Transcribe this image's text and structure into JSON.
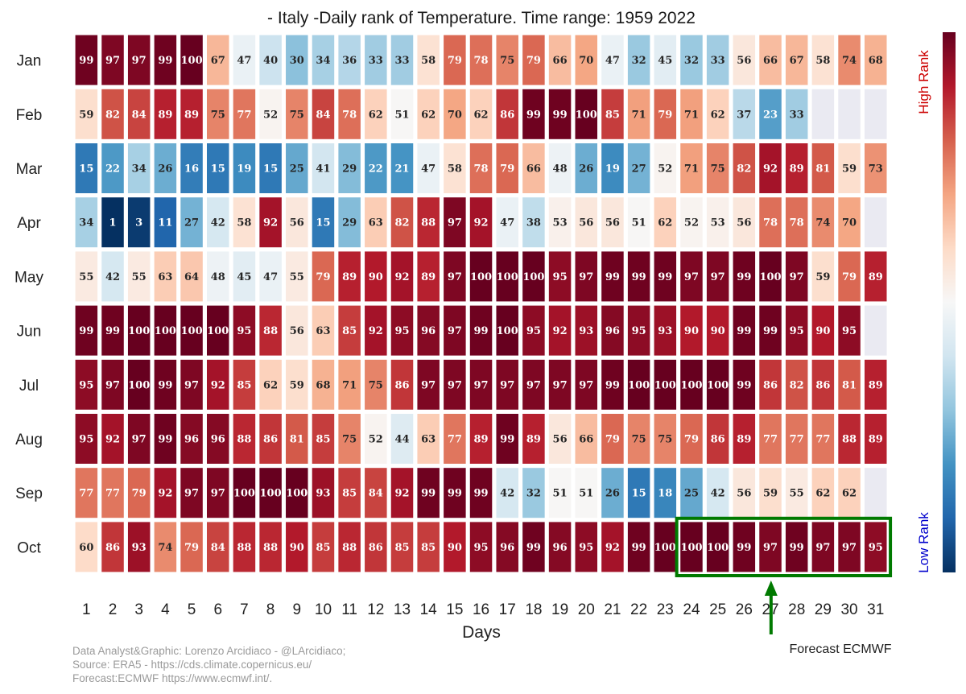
{
  "chart_data": {
    "type": "heatmap",
    "title": "- Italy -Daily rank of Temperature. Time range: 1959 2022",
    "xlabel": "Days",
    "ylabel": "",
    "x": [
      1,
      2,
      3,
      4,
      5,
      6,
      7,
      8,
      9,
      10,
      11,
      12,
      13,
      14,
      15,
      16,
      17,
      18,
      19,
      20,
      21,
      22,
      23,
      24,
      25,
      26,
      27,
      28,
      29,
      30,
      31
    ],
    "y": [
      "Jan",
      "Feb",
      "Mar",
      "Apr",
      "May",
      "Jun",
      "Jul",
      "Aug",
      "Sep",
      "Oct"
    ],
    "values": [
      [
        99,
        97,
        97,
        99,
        100,
        67,
        47,
        40,
        30,
        34,
        36,
        33,
        33,
        58,
        79,
        78,
        75,
        79,
        66,
        70,
        47,
        32,
        45,
        32,
        33,
        56,
        66,
        67,
        58,
        74,
        68
      ],
      [
        59,
        82,
        84,
        89,
        89,
        75,
        77,
        52,
        75,
        84,
        78,
        62,
        51,
        62,
        70,
        62,
        86,
        99,
        99,
        100,
        85,
        71,
        79,
        71,
        62,
        37,
        23,
        33,
        null,
        null,
        null
      ],
      [
        15,
        22,
        34,
        26,
        16,
        15,
        19,
        15,
        25,
        41,
        29,
        22,
        21,
        47,
        58,
        78,
        79,
        66,
        48,
        26,
        19,
        27,
        52,
        71,
        75,
        82,
        92,
        89,
        81,
        59,
        73
      ],
      [
        34,
        1,
        3,
        11,
        27,
        42,
        58,
        92,
        56,
        15,
        29,
        63,
        82,
        88,
        97,
        92,
        47,
        38,
        53,
        56,
        56,
        51,
        62,
        52,
        53,
        56,
        78,
        78,
        74,
        70,
        null
      ],
      [
        55,
        42,
        55,
        63,
        64,
        48,
        45,
        47,
        55,
        79,
        89,
        90,
        92,
        89,
        97,
        100,
        100,
        100,
        95,
        97,
        99,
        99,
        99,
        97,
        97,
        99,
        100,
        97,
        59,
        79,
        89
      ],
      [
        99,
        99,
        100,
        100,
        100,
        100,
        95,
        88,
        56,
        63,
        85,
        92,
        95,
        96,
        97,
        99,
        100,
        95,
        92,
        93,
        96,
        95,
        93,
        90,
        90,
        99,
        99,
        95,
        90,
        95,
        null
      ],
      [
        95,
        97,
        100,
        99,
        97,
        92,
        85,
        62,
        59,
        68,
        71,
        75,
        86,
        97,
        97,
        97,
        97,
        97,
        97,
        97,
        99,
        100,
        100,
        100,
        100,
        99,
        86,
        82,
        86,
        81,
        89
      ],
      [
        95,
        92,
        97,
        99,
        96,
        96,
        88,
        86,
        81,
        85,
        75,
        52,
        44,
        63,
        77,
        89,
        99,
        89,
        56,
        66,
        79,
        75,
        75,
        79,
        86,
        89,
        77,
        77,
        77,
        88,
        89
      ],
      [
        77,
        77,
        79,
        92,
        97,
        97,
        100,
        100,
        100,
        93,
        85,
        84,
        92,
        99,
        99,
        99,
        42,
        32,
        51,
        51,
        26,
        15,
        18,
        25,
        42,
        56,
        59,
        55,
        62,
        62,
        null
      ],
      [
        60,
        86,
        93,
        74,
        79,
        84,
        88,
        88,
        90,
        85,
        88,
        86,
        85,
        85,
        90,
        95,
        96,
        99,
        96,
        95,
        92,
        99,
        100,
        100,
        100,
        99,
        97,
        99,
        97,
        97,
        95
      ]
    ],
    "value_range": [
      1,
      100
    ],
    "colormap": "RdBu_r",
    "colorbar": {
      "high_label": "High Rank",
      "low_label": "Low Rank",
      "high_color": "#cc0000",
      "low_color": "#0000cc"
    },
    "annotation": {
      "text": "Forecast ECMWF",
      "month": "Oct",
      "day_start": 24,
      "day_end": 31,
      "color": "#007a00"
    }
  },
  "credits": [
    "Data Analyst&Graphic: Lorenzo Arcidiaco - @LArcidiaco;",
    "Source: ERA5 - https://cds.climate.copernicus.eu/",
    "Forecast:ECMWF https://www.ecmwf.int/."
  ]
}
